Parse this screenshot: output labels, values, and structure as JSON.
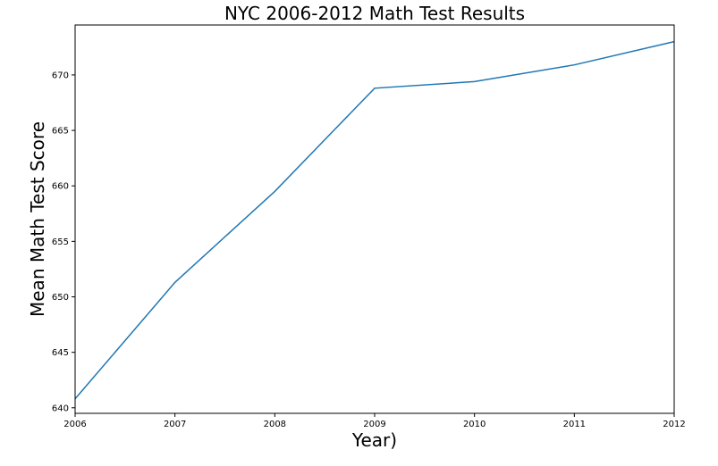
{
  "chart_data": {
    "type": "line",
    "title": "NYC 2006-2012 Math Test Results",
    "xlabel": "Year)",
    "ylabel": "Mean Math Test Score",
    "x": [
      2006,
      2007,
      2008,
      2009,
      2010,
      2011,
      2012
    ],
    "series": [
      {
        "values": [
          640.8,
          651.3,
          659.5,
          668.8,
          669.4,
          670.9,
          673.0
        ],
        "color": "#1f77b4"
      }
    ],
    "xlim": [
      2006,
      2012
    ],
    "ylim": [
      639.5,
      674.5
    ],
    "xticks": [
      2006,
      2007,
      2008,
      2009,
      2010,
      2011,
      2012
    ],
    "yticks": [
      640,
      645,
      650,
      655,
      660,
      665,
      670
    ],
    "grid": false
  }
}
